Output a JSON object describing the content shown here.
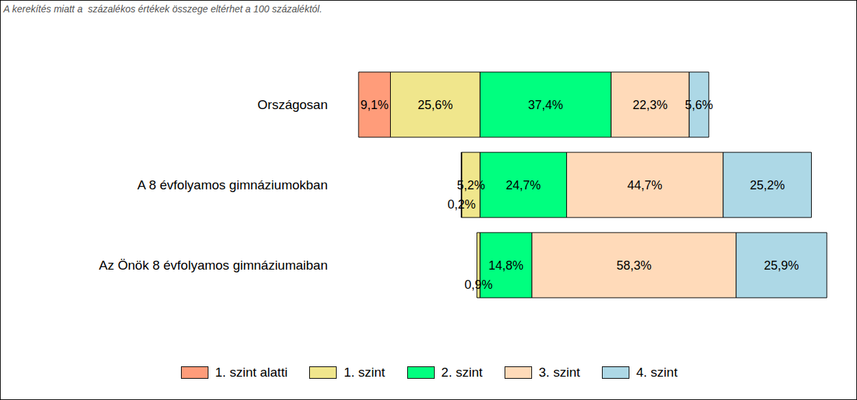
{
  "chart_data": {
    "type": "bar",
    "orientation": "horizontal",
    "stacked": true,
    "data_labels": true,
    "legend": "bottom",
    "tick_labels": "y",
    "annotations": [
      "A kerekítés miatt a  százalékos értékek összege eltérhet a 100 százaléktól."
    ],
    "categories": [
      "Országosan",
      "A 8 évfolyamos gimnáziumokban",
      "Az Önök 8 évfolyamos gimnáziumaiban"
    ],
    "series": [
      {
        "name": "1. szint alatti",
        "color": "#ff9c7a",
        "values": [
          9.1,
          0.2,
          null
        ],
        "value_labels": [
          "9,1%",
          "0,2%",
          null
        ]
      },
      {
        "name": "1. szint",
        "color": "#f0e68c",
        "values": [
          25.6,
          5.2,
          0.9
        ],
        "value_labels": [
          "25,6%",
          "5,2%",
          "0,9%"
        ]
      },
      {
        "name": "2. szint",
        "color": "#00ff7f",
        "values": [
          37.4,
          24.7,
          14.8
        ],
        "value_labels": [
          "37,4%",
          "24,7%",
          "14,8%"
        ]
      },
      {
        "name": "3. szint",
        "color": "#ffdab9",
        "values": [
          22.3,
          44.7,
          58.3
        ],
        "value_labels": [
          "22,3%",
          "44,7%",
          "58,3%"
        ]
      },
      {
        "name": "4. szint",
        "color": "#add8e6",
        "values": [
          5.6,
          25.2,
          25.9
        ],
        "value_labels": [
          "5,6%",
          "25,2%",
          "25,9%"
        ]
      }
    ]
  }
}
